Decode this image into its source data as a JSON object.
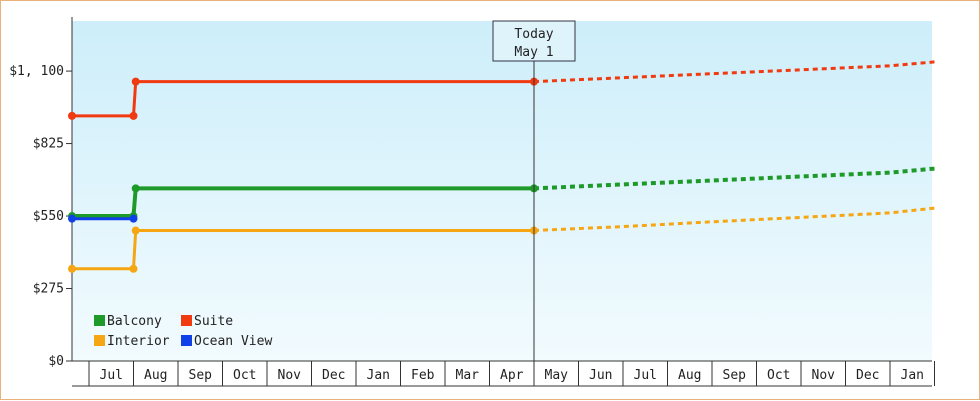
{
  "chart_data": {
    "type": "line",
    "y_ticks": [
      "$0",
      "$275",
      "$550",
      "$825",
      "$1, 100"
    ],
    "y_tick_values": [
      0,
      275,
      550,
      825,
      1100
    ],
    "ylim": [
      0,
      1290
    ],
    "x_tick_labels": [
      "Jul",
      "Aug",
      "Sep",
      "Oct",
      "Nov",
      "Dec",
      "Jan",
      "Feb",
      "Mar",
      "Apr",
      "May",
      "Jun",
      "Jul",
      "Aug",
      "Sep",
      "Oct",
      "Nov",
      "Dec",
      "Jan"
    ],
    "x_start": "Jun 1",
    "x_end": "Jan 31",
    "today": {
      "label_line1": "Today",
      "label_line2": "May 1",
      "month_index": 11
    },
    "legend_placement": "bottom-left",
    "series": [
      {
        "name": "Balcony",
        "color": "#1e9a2a",
        "width": 4,
        "historical": [
          [
            0.0,
            550
          ],
          [
            2.0,
            550
          ],
          [
            2.05,
            655
          ],
          [
            11.0,
            655
          ]
        ],
        "projected": [
          [
            11.0,
            655
          ],
          [
            13,
            670
          ],
          [
            15,
            685
          ],
          [
            17,
            700
          ],
          [
            19,
            715
          ],
          [
            20.0,
            730
          ]
        ]
      },
      {
        "name": "Suite",
        "color": "#f03a10",
        "width": 3,
        "historical": [
          [
            0.0,
            930
          ],
          [
            2.0,
            930
          ],
          [
            2.05,
            1060
          ],
          [
            11.0,
            1060
          ]
        ],
        "projected": [
          [
            11.0,
            1060
          ],
          [
            13,
            1075
          ],
          [
            15,
            1090
          ],
          [
            17,
            1105
          ],
          [
            19,
            1120
          ],
          [
            20.0,
            1135
          ]
        ]
      },
      {
        "name": "Interior",
        "color": "#f5a612",
        "width": 3,
        "historical": [
          [
            0.0,
            350
          ],
          [
            2.0,
            350
          ],
          [
            2.05,
            495
          ],
          [
            11.0,
            495
          ]
        ],
        "projected": [
          [
            11.0,
            495
          ],
          [
            13,
            510
          ],
          [
            15,
            528
          ],
          [
            17,
            545
          ],
          [
            19,
            562
          ],
          [
            20.0,
            580
          ]
        ]
      },
      {
        "name": "Ocean View",
        "color": "#1040e8",
        "width": 3,
        "historical": [
          [
            0.0,
            540
          ],
          [
            2.0,
            540
          ]
        ],
        "projected": []
      }
    ],
    "markers": [
      {
        "series": "Balcony",
        "points": [
          [
            0.0,
            550
          ],
          [
            2.0,
            550
          ],
          [
            2.05,
            655
          ],
          [
            11.0,
            655
          ]
        ]
      },
      {
        "series": "Suite",
        "points": [
          [
            0.0,
            930
          ],
          [
            2.0,
            930
          ],
          [
            2.05,
            1060
          ],
          [
            11.0,
            1060
          ]
        ]
      },
      {
        "series": "Interior",
        "points": [
          [
            0.0,
            350
          ],
          [
            2.0,
            350
          ],
          [
            2.05,
            495
          ],
          [
            11.0,
            495
          ]
        ]
      },
      {
        "series": "Ocean View",
        "points": [
          [
            0.0,
            540
          ],
          [
            2.0,
            540
          ]
        ]
      }
    ],
    "legend": [
      {
        "name": "Balcony",
        "color": "#1e9a2a"
      },
      {
        "name": "Suite",
        "color": "#f03a10"
      },
      {
        "name": "Interior",
        "color": "#f5a612"
      },
      {
        "name": "Ocean View",
        "color": "#1040e8"
      }
    ]
  }
}
